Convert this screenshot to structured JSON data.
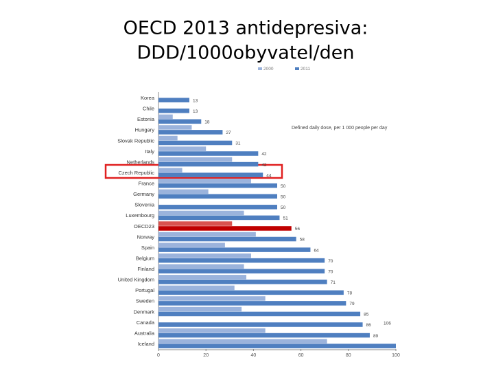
{
  "chart_data": {
    "type": "hbar",
    "title": [
      "OECD 2013 antidepresiva:",
      "DDD/1000obyvatel/den"
    ],
    "annotation": "Defined daily dose, per 1 000 people per day",
    "legend": "top",
    "categories": [
      "Korea",
      "Chile",
      "Estonia",
      "Hungary",
      "Slovak Republic",
      "Italy",
      "Netherlands",
      "Czech Republic",
      "France",
      "Germany",
      "Slovenia",
      "Luxembourg",
      "OECD23",
      "Norway",
      "Spain",
      "Belgium",
      "Finland",
      "United Kingdom",
      "Portugal",
      "Sweden",
      "Denmark",
      "Canada",
      "Australia",
      "Iceland"
    ],
    "series": [
      {
        "name": "2000",
        "color": "#9bb3dc",
        "colors": [
          "#9bb3dc",
          "#9bb3dc",
          "#9bb3dc",
          "#9bb3dc",
          "#9bb3dc",
          "#9bb3dc",
          "#9bb3dc",
          "#9bb3dc",
          "#9bb3dc",
          "#9bb3dc",
          "#9bb3dc",
          "#9bb3dc",
          "#d9534f",
          "#9bb3dc",
          "#9bb3dc",
          "#9bb3dc",
          "#9bb3dc",
          "#9bb3dc",
          "#9bb3dc",
          "#9bb3dc",
          "#9bb3dc",
          "#9bb3dc",
          "#9bb3dc",
          "#9bb3dc"
        ],
        "values": [
          null,
          null,
          6,
          14,
          8,
          20,
          31,
          10,
          39,
          21,
          null,
          36,
          31,
          41,
          28,
          39,
          36,
          37,
          32,
          45,
          35,
          null,
          45,
          71
        ]
      },
      {
        "name": "2011",
        "color": "#4f7fc0",
        "colors": [
          "#4f7fc0",
          "#4f7fc0",
          "#4f7fc0",
          "#4f7fc0",
          "#4f7fc0",
          "#4f7fc0",
          "#4f7fc0",
          "#4f7fc0",
          "#4f7fc0",
          "#4f7fc0",
          "#4f7fc0",
          "#4f7fc0",
          "#c00000",
          "#4f7fc0",
          "#4f7fc0",
          "#4f7fc0",
          "#4f7fc0",
          "#4f7fc0",
          "#4f7fc0",
          "#4f7fc0",
          "#4f7fc0",
          "#4f7fc0",
          "#4f7fc0",
          "#4f7fc0"
        ],
        "values": [
          13,
          13,
          18,
          27,
          31,
          42,
          42,
          44,
          50,
          50,
          50,
          51,
          56,
          58,
          64,
          70,
          70,
          71,
          78,
          79,
          85,
          86,
          89,
          106
        ]
      }
    ],
    "xlim": [
      0,
      100
    ],
    "xticks": [
      0,
      20,
      40,
      60,
      80,
      100
    ]
  }
}
